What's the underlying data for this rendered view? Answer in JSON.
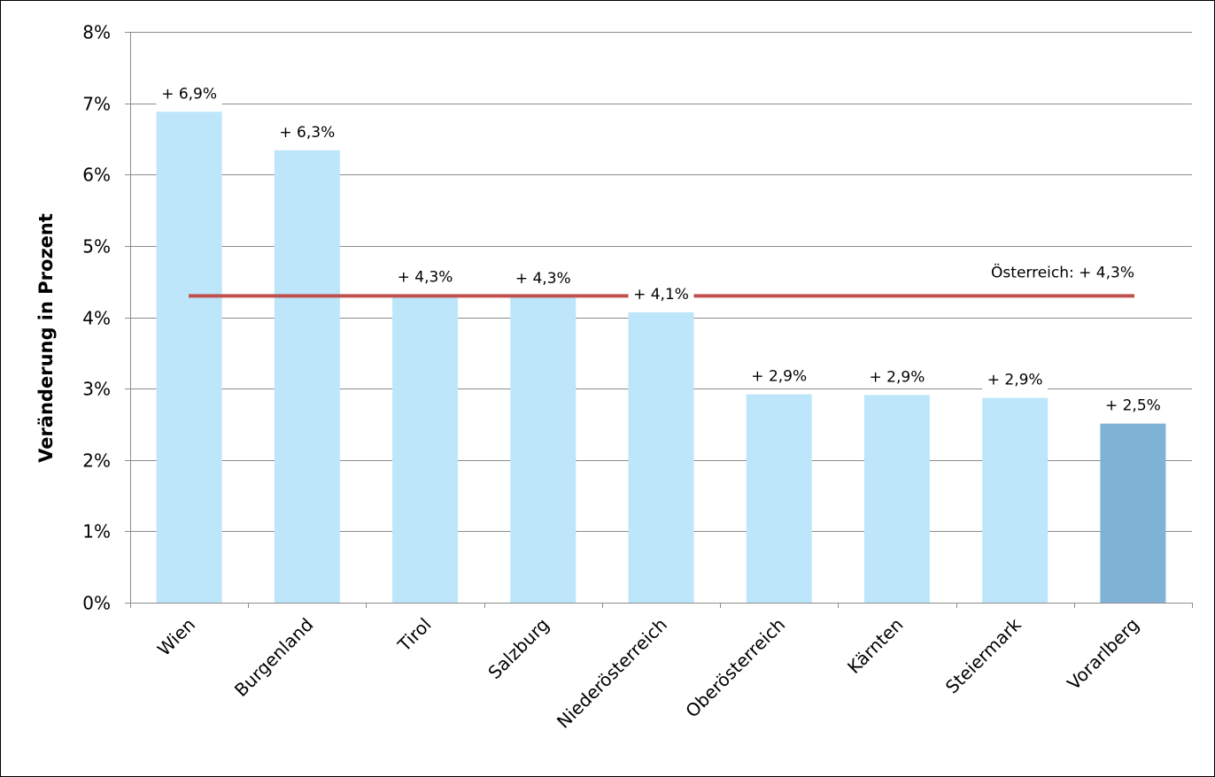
{
  "chart_data": {
    "type": "bar",
    "ylabel": "Veränderung in Prozent",
    "ylim": [
      0,
      8
    ],
    "ytick_values": [
      0,
      1,
      2,
      3,
      4,
      5,
      6,
      7,
      8
    ],
    "ytick_labels": [
      "0%",
      "1%",
      "2%",
      "3%",
      "4%",
      "5%",
      "6%",
      "7%",
      "8%"
    ],
    "grid": true,
    "categories": [
      "Wien",
      "Burgenland",
      "Tirol",
      "Salzburg",
      "Niederösterreich",
      "Oberösterreich",
      "Kärnten",
      "Steiermark",
      "Vorarlberg"
    ],
    "values": [
      6.88,
      6.34,
      4.31,
      4.29,
      4.07,
      2.92,
      2.91,
      2.87,
      2.51
    ],
    "data_labels": [
      "+ 6,9%",
      "+ 6,3%",
      "+ 4,3%",
      "+ 4,3%",
      "+ 4,1%",
      "+ 2,9%",
      "+ 2,9%",
      "+ 2,9%",
      "+ 2,5%"
    ],
    "highlight_index": 8,
    "bar_color": "#bde6fb",
    "highlight_color": "#7fb3d6",
    "reference_line": {
      "value": 4.3,
      "label": "Österreich: + 4,3%",
      "color": "#c0504d"
    }
  }
}
